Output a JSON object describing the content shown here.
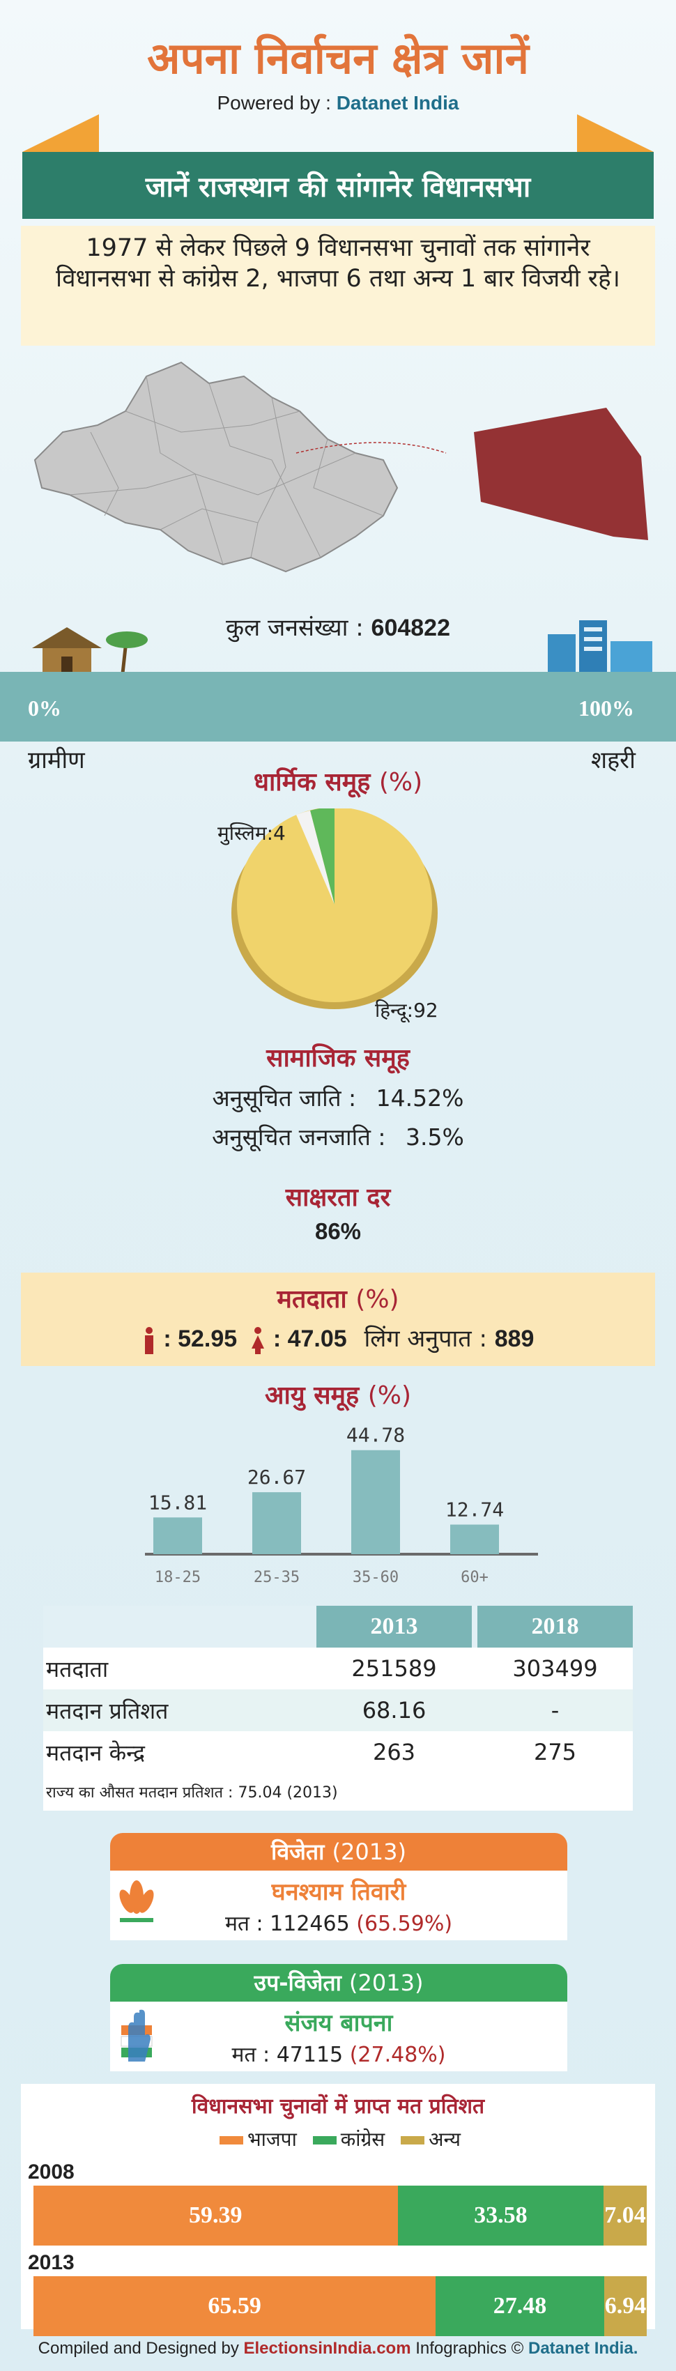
{
  "header": {
    "title": "अपना निर्वाचन क्षेत्र जानें",
    "powered_by_label": "Powered by :",
    "powered_by_brand": "Datanet India"
  },
  "banner": {
    "text": "जानें राजस्थान की सांगानेर विधानसभा"
  },
  "intro": {
    "text": "1977 से लेकर पिछले 9 विधानसभा चुनावों तक सांगानेर विधानसभा से कांग्रेस 2, भाजपा 6 तथा अन्य 1 बार विजयी रहे।"
  },
  "population": {
    "label": "कुल जनसंख्या :",
    "value": "604822",
    "left_pct": "0%",
    "right_pct": "100%",
    "rural_label": "ग्रामीण",
    "urban_label": "शहरी",
    "urban_fraction": 1.0
  },
  "religion": {
    "title": "धार्मिक समूह",
    "unit": "(%)",
    "muslim_label": "मुस्लिम:4",
    "hindu_label": "हिन्दू:92"
  },
  "social": {
    "title": "सामाजिक समूह",
    "sc_label": "अनुसूचित जाति :",
    "sc_value": "14.52%",
    "st_label": "अनुसूचित जनजाति :",
    "st_value": "3.5%"
  },
  "literacy": {
    "title": "साक्षरता दर",
    "value": "86%"
  },
  "voters": {
    "title": "मतदाता",
    "unit": "(%)",
    "male": ": 52.95",
    "female": ": 47.05",
    "sex_ratio_label": "लिंग अनुपात :",
    "sex_ratio_value": "889"
  },
  "age_title": "आयु समूह",
  "age_unit": "(%)",
  "chart_data": {
    "type": "bar",
    "categories": [
      "18-25",
      "25-35",
      "35-60",
      "60+"
    ],
    "values": [
      15.81,
      26.67,
      44.78,
      12.74
    ],
    "data_labels": [
      "15.81",
      "26.67",
      "44.78",
      "12.74"
    ],
    "title": "आयु समूह (%)",
    "color": "#86bcbe"
  },
  "election_table": {
    "years": [
      "2013",
      "2018"
    ],
    "rows": [
      {
        "label": "मतदाता",
        "v2013": "251589",
        "v2018": "303499"
      },
      {
        "label": "मतदान प्रतिशत",
        "v2013": "68.16",
        "v2018": "-"
      },
      {
        "label": "मतदान केन्द्र",
        "v2013": "263",
        "v2018": "275"
      }
    ],
    "note": "राज्य का औसत मतदान प्रतिशत : 75.04 (2013)"
  },
  "winner": {
    "heading": "विजेता",
    "year": "(2013)",
    "name": "घनश्याम तिवारी",
    "votes_label": "मत : 112465",
    "votes_pct": "(65.59%)",
    "party_color": "#ee8138"
  },
  "runner_up": {
    "heading": "उप-विजेता",
    "year": "(2013)",
    "name": "संजय बापना",
    "votes_label": "मत : 47115",
    "votes_pct": "(27.48%)",
    "party_color": "#3aa95c"
  },
  "vote_share": {
    "title": "विधानसभा चुनावों में प्राप्त मत प्रतिशत",
    "legend": [
      "भाजपा",
      "कांग्रेस",
      "अन्य"
    ],
    "colors": [
      "#f08a3c",
      "#3aa95c",
      "#c9a94a"
    ],
    "years": [
      {
        "year": "2008",
        "values": [
          59.39,
          33.58,
          7.04
        ],
        "labels": [
          "59.39",
          "33.58",
          "7.04"
        ]
      },
      {
        "year": "2013",
        "values": [
          65.59,
          27.48,
          6.94
        ],
        "labels": [
          "65.59",
          "27.48",
          "6.94"
        ]
      }
    ]
  },
  "footer": {
    "compiled": "Compiled and Designed by",
    "site": "ElectionsinIndia.com",
    "infographics": "Infographics ©",
    "brand": "Datanet India."
  }
}
